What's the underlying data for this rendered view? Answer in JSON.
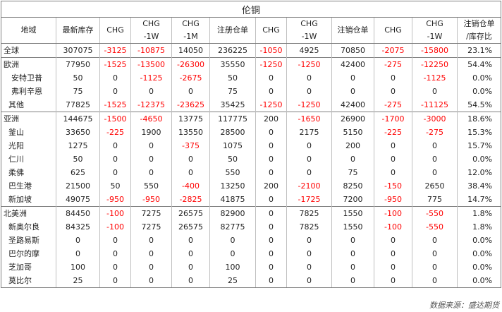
{
  "title": "伦铜",
  "headers": [
    "地域",
    "最新库存",
    "CHG",
    "CHG\n-1W",
    "CHG\n-1M",
    "注册仓单",
    "CHG",
    "CHG\n-1W",
    "注销仓单",
    "CHG",
    "CHG\n-1W",
    "注销仓单\n/库存比"
  ],
  "rows": [
    [
      "全球",
      "307075",
      "-3125",
      "-10875",
      "14050",
      "236225",
      "-1050",
      "4925",
      "70850",
      "-2075",
      "-15800",
      "23.1%"
    ],
    [
      "欧洲",
      "77950",
      "-1525",
      "-13500",
      "-26300",
      "35550",
      "-1250",
      "-1250",
      "42400",
      "-275",
      "-12250",
      "54.4%"
    ],
    [
      "安特卫普",
      "50",
      "0",
      "-1125",
      "-2675",
      "50",
      "0",
      "0",
      "0",
      "0",
      "-1125",
      "0.0%"
    ],
    [
      "弗利辛恩",
      "75",
      "0",
      "0",
      "0",
      "75",
      "0",
      "0",
      "0",
      "0",
      "0",
      "0.0%"
    ],
    [
      "其他",
      "77825",
      "-1525",
      "-12375",
      "-23625",
      "35425",
      "-1250",
      "-1250",
      "42400",
      "-275",
      "-11125",
      "54.5%"
    ],
    [
      "亚洲",
      "144675",
      "-1500",
      "-4650",
      "13775",
      "117775",
      "200",
      "-1650",
      "26900",
      "-1700",
      "-3000",
      "18.6%"
    ],
    [
      "釜山",
      "33650",
      "-225",
      "1900",
      "13550",
      "28500",
      "0",
      "2175",
      "5150",
      "-225",
      "-275",
      "15.3%"
    ],
    [
      "光阳",
      "1275",
      "0",
      "0",
      "-375",
      "1075",
      "0",
      "0",
      "200",
      "0",
      "0",
      "15.7%"
    ],
    [
      "仁川",
      "50",
      "0",
      "0",
      "0",
      "50",
      "0",
      "0",
      "0",
      "0",
      "0",
      "0.0%"
    ],
    [
      "柔佛",
      "625",
      "0",
      "0",
      "0",
      "550",
      "0",
      "0",
      "75",
      "0",
      "0",
      "12.0%"
    ],
    [
      "巴生港",
      "21500",
      "50",
      "550",
      "-400",
      "13250",
      "200",
      "-2100",
      "8250",
      "-150",
      "2650",
      "38.4%"
    ],
    [
      "新加坡",
      "49075",
      "-950",
      "-950",
      "-2825",
      "41875",
      "0",
      "-1725",
      "7200",
      "-950",
      "775",
      "14.7%"
    ],
    [
      "北美洲",
      "84450",
      "-100",
      "7275",
      "26575",
      "82900",
      "0",
      "7825",
      "1550",
      "-100",
      "-550",
      "1.8%"
    ],
    [
      "新奥尔良",
      "84325",
      "-100",
      "7275",
      "26575",
      "82775",
      "0",
      "7825",
      "1550",
      "-100",
      "-550",
      "1.8%"
    ],
    [
      "圣路易斯",
      "0",
      "0",
      "0",
      "0",
      "0",
      "0",
      "0",
      "0",
      "0",
      "0",
      "0.0%"
    ],
    [
      "巴尔的摩",
      "0",
      "0",
      "0",
      "0",
      "0",
      "0",
      "0",
      "0",
      "0",
      "0",
      "0.0%"
    ],
    [
      "芝加哥",
      "100",
      "0",
      "0",
      "0",
      "100",
      "0",
      "0",
      "0",
      "0",
      "0",
      "0.0%"
    ],
    [
      "莫比尔",
      "25",
      "0",
      "0",
      "0",
      "25",
      "0",
      "0",
      "0",
      "0",
      "0",
      "0.0%"
    ]
  ],
  "source": "数据来源：盛达期货",
  "colors": {
    "negative": "#ff0000",
    "border": "#7f7f7f",
    "grid": "#bfbfbf"
  }
}
